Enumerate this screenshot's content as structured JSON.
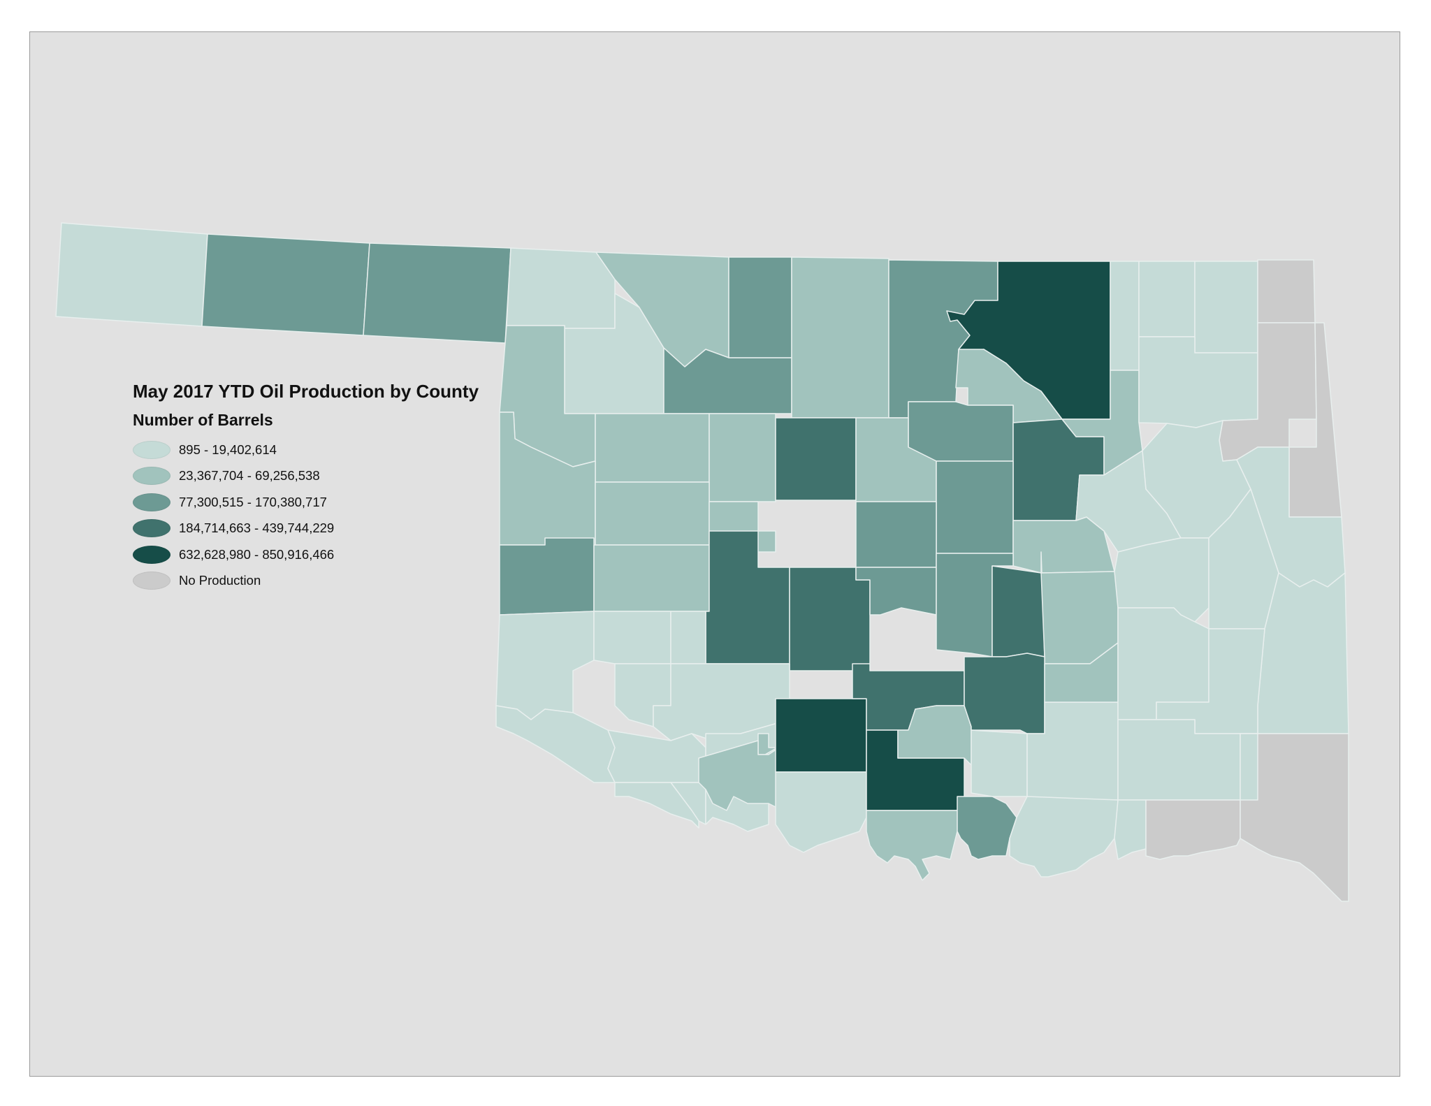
{
  "legend": {
    "title": "May 2017 YTD Oil Production by County",
    "subtitle": "Number of Barrels",
    "classes": [
      {
        "id": "c1",
        "label": "895 - 19,402,614",
        "color": "#c5dbd7"
      },
      {
        "id": "c2",
        "label": "23,367,704 - 69,256,538",
        "color": "#a1c3bd"
      },
      {
        "id": "c3",
        "label": "77,300,515 - 170,380,717",
        "color": "#6d9a94"
      },
      {
        "id": "c4",
        "label": "184,714,663 - 439,744,229",
        "color": "#40726d"
      },
      {
        "id": "c5",
        "label": "632,628,980 - 850,916,466",
        "color": "#164d48"
      },
      {
        "id": "none",
        "label": "No Production",
        "color": "#cbcbcb"
      }
    ]
  },
  "map": {
    "region": "Oklahoma",
    "background_color": "#e1e1e1",
    "county_border_color": "#e8efee",
    "county_classes": [
      "c1",
      "c1",
      "c2",
      "c2",
      "c3",
      "c4",
      "c5",
      "none"
    ]
  }
}
